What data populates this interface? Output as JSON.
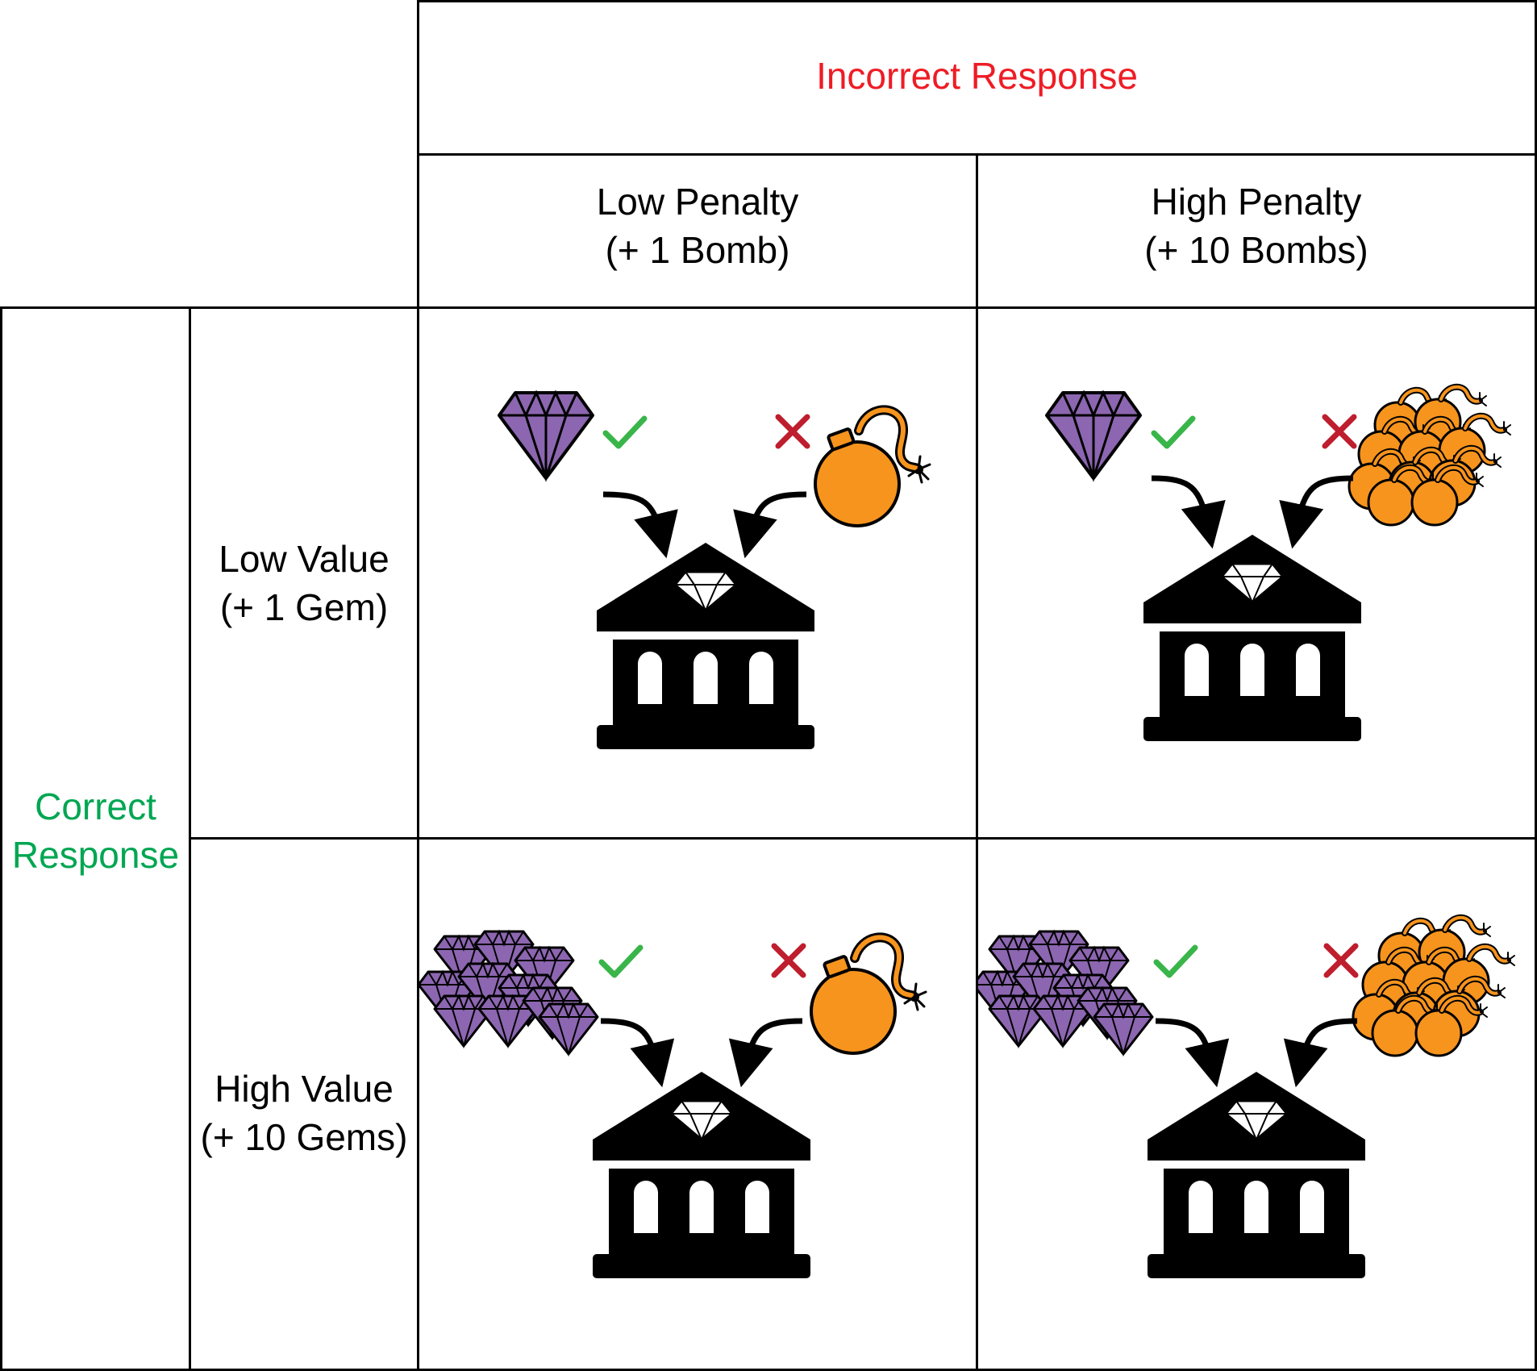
{
  "header": {
    "incorrect_title": "Incorrect Response",
    "incorrect_color": "#ee1c25",
    "columns": [
      {
        "line1": "Low Penalty",
        "line2": "(+ 1 Bomb)"
      },
      {
        "line1": "High Penalty",
        "line2": "(+ 10 Bombs)"
      }
    ]
  },
  "side": {
    "correct_line1": "Correct",
    "correct_line2": "Response",
    "correct_color": "#00a651",
    "rows": [
      {
        "line1": "Low Value",
        "line2": "(+ 1 Gem)"
      },
      {
        "line1": "High Value",
        "line2": "(+ 10 Gems)"
      }
    ]
  },
  "cells": [
    {
      "gems": "single",
      "bombs": "single",
      "bank_icon": "bank-icon"
    },
    {
      "gems": "single",
      "bombs": "pile",
      "bank_icon": "bank-icon"
    },
    {
      "gems": "pile",
      "bombs": "single",
      "bank_icon": "bank-icon"
    },
    {
      "gems": "pile",
      "bombs": "pile",
      "bank_icon": "bank-icon"
    }
  ],
  "colors": {
    "gem": "#8c66b0",
    "bomb": "#f7941d",
    "check": "#39b54a",
    "cross": "#be1e2d",
    "bank": "#000000"
  }
}
